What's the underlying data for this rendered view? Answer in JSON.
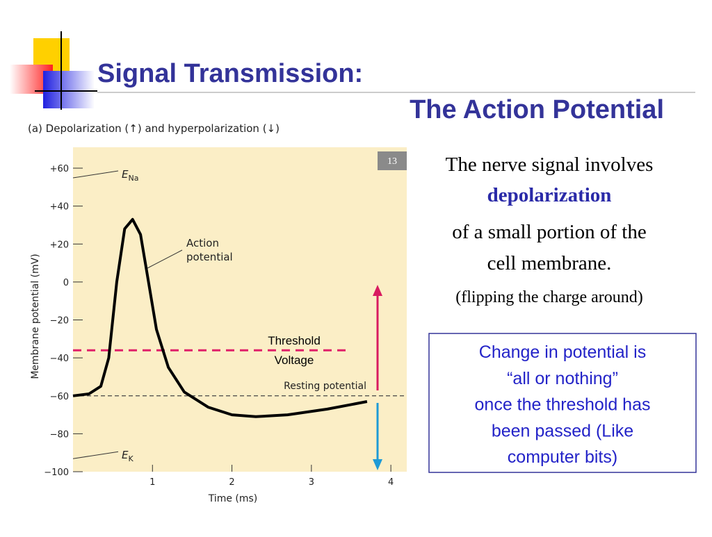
{
  "slide": {
    "title_line1": "Signal Transmission:",
    "title_line2": "The Action Potential",
    "text_lines": [
      "The nerve signal involves",
      "depolarization",
      "of a small portion of the",
      "cell membrane.",
      "(flipping the charge around)"
    ],
    "box_lines": [
      "Change in potential is",
      "“all or nothing”",
      "once the threshold has",
      "been passed (Like",
      "computer bits)"
    ],
    "badge": "13"
  },
  "chart_data": {
    "type": "line",
    "caption": "(a) Depolarization (↑) and hyperpolarization (↓)",
    "x_label": "Time (ms)",
    "y_label": "Membrane potential (mV)",
    "xlim": [
      0,
      4.2
    ],
    "ylim": [
      -100,
      71
    ],
    "xticks": [
      1,
      2,
      3,
      4
    ],
    "yticks": [
      {
        "value": 60,
        "label": "+60"
      },
      {
        "value": 40,
        "label": "+40"
      },
      {
        "value": 20,
        "label": "+20"
      },
      0,
      {
        "value": -20,
        "label": "−20"
      },
      {
        "value": -40,
        "label": "−40"
      },
      {
        "value": -60,
        "label": "−60"
      },
      {
        "value": -80,
        "label": "−80"
      },
      {
        "value": -100,
        "label": "−100"
      }
    ],
    "x": [
      0,
      0.2,
      0.35,
      0.45,
      0.55,
      0.65,
      0.75,
      0.85,
      0.95,
      1.05,
      1.2,
      1.4,
      1.7,
      2.0,
      2.3,
      2.7,
      3.2,
      3.7
    ],
    "series": [
      {
        "name": "Action potential",
        "name_lines": [
          "Action",
          "potential"
        ],
        "color": "#000000",
        "values": [
          -60,
          -59,
          -55,
          -40,
          0,
          28,
          33,
          25,
          0,
          -25,
          -45,
          -58,
          -66,
          -70,
          -71,
          -70,
          -67,
          -63
        ]
      }
    ],
    "hlines": [
      {
        "name": "Resting potential",
        "value": -60,
        "color": "#444444"
      },
      {
        "name_lines": [
          "Threshold",
          "Voltage"
        ],
        "value": -36,
        "color": "#e0206a"
      }
    ],
    "levels": [
      {
        "main": "E",
        "sub": "Na",
        "value": 60
      },
      {
        "main": "E",
        "sub": "K",
        "value": -88
      }
    ],
    "background": "#fbeec6"
  }
}
